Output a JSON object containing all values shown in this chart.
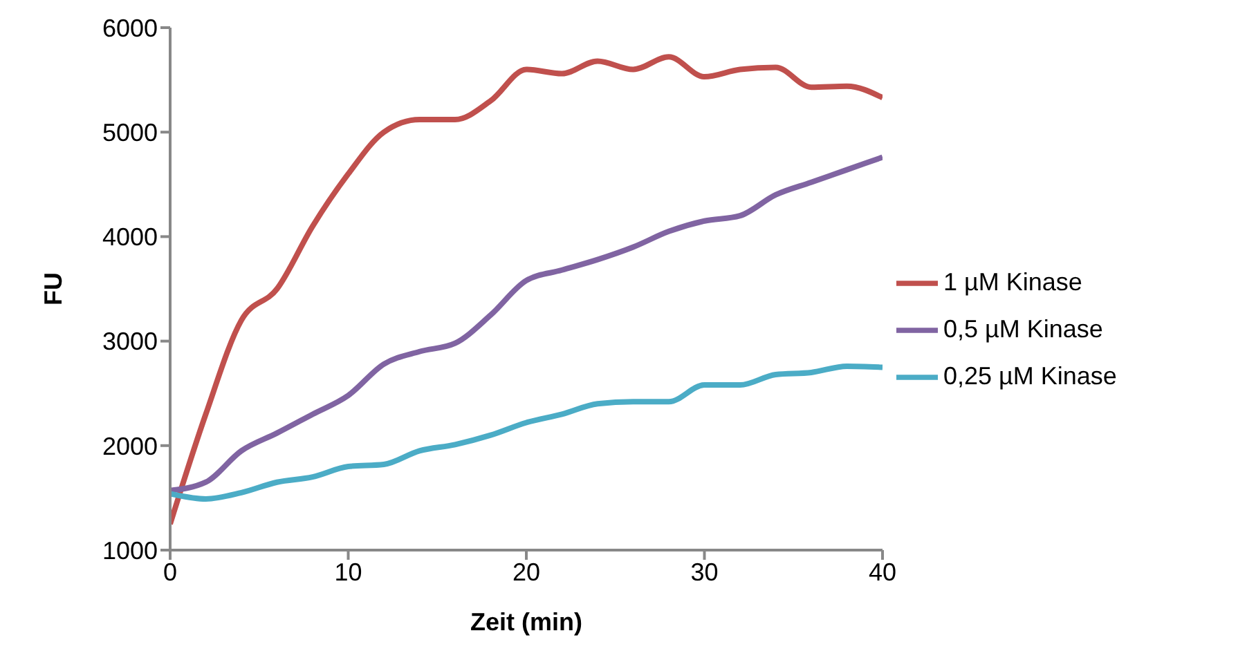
{
  "chart_data": {
    "type": "line",
    "xlabel": "Zeit (min)",
    "ylabel": "FU",
    "x": [
      0,
      2,
      4,
      6,
      8,
      10,
      12,
      14,
      16,
      18,
      20,
      22,
      24,
      26,
      28,
      30,
      32,
      34,
      36,
      38,
      40
    ],
    "series": [
      {
        "name": "1 µM Kinase",
        "color": "#c0504d",
        "values": [
          1250,
          2300,
          3200,
          3500,
          4100,
          4600,
          5000,
          5120,
          5120,
          5300,
          5600,
          5560,
          5680,
          5600,
          5720,
          5530,
          5600,
          5620,
          5430,
          5440,
          5330
        ]
      },
      {
        "name": "0,5 µM Kinase",
        "color": "#8064a2",
        "values": [
          1570,
          1650,
          1950,
          2120,
          2300,
          2480,
          2780,
          2900,
          2980,
          3250,
          3580,
          3680,
          3780,
          3900,
          4050,
          4150,
          4200,
          4400,
          4520,
          4640,
          4760
        ]
      },
      {
        "name": "0,25 µM Kinase",
        "color": "#4bacc6",
        "values": [
          1540,
          1490,
          1550,
          1650,
          1700,
          1800,
          1820,
          1950,
          2010,
          2100,
          2220,
          2300,
          2400,
          2420,
          2420,
          2580,
          2580,
          2680,
          2700,
          2760,
          2750
        ]
      }
    ],
    "xlim": [
      0,
      40
    ],
    "xticks": [
      0,
      10,
      20,
      30,
      40
    ],
    "ylim": [
      1000,
      6000
    ],
    "yticks": [
      1000,
      2000,
      3000,
      4000,
      5000,
      6000
    ],
    "grid": false,
    "legend": "right",
    "marker": "none",
    "line_style": "solid"
  }
}
